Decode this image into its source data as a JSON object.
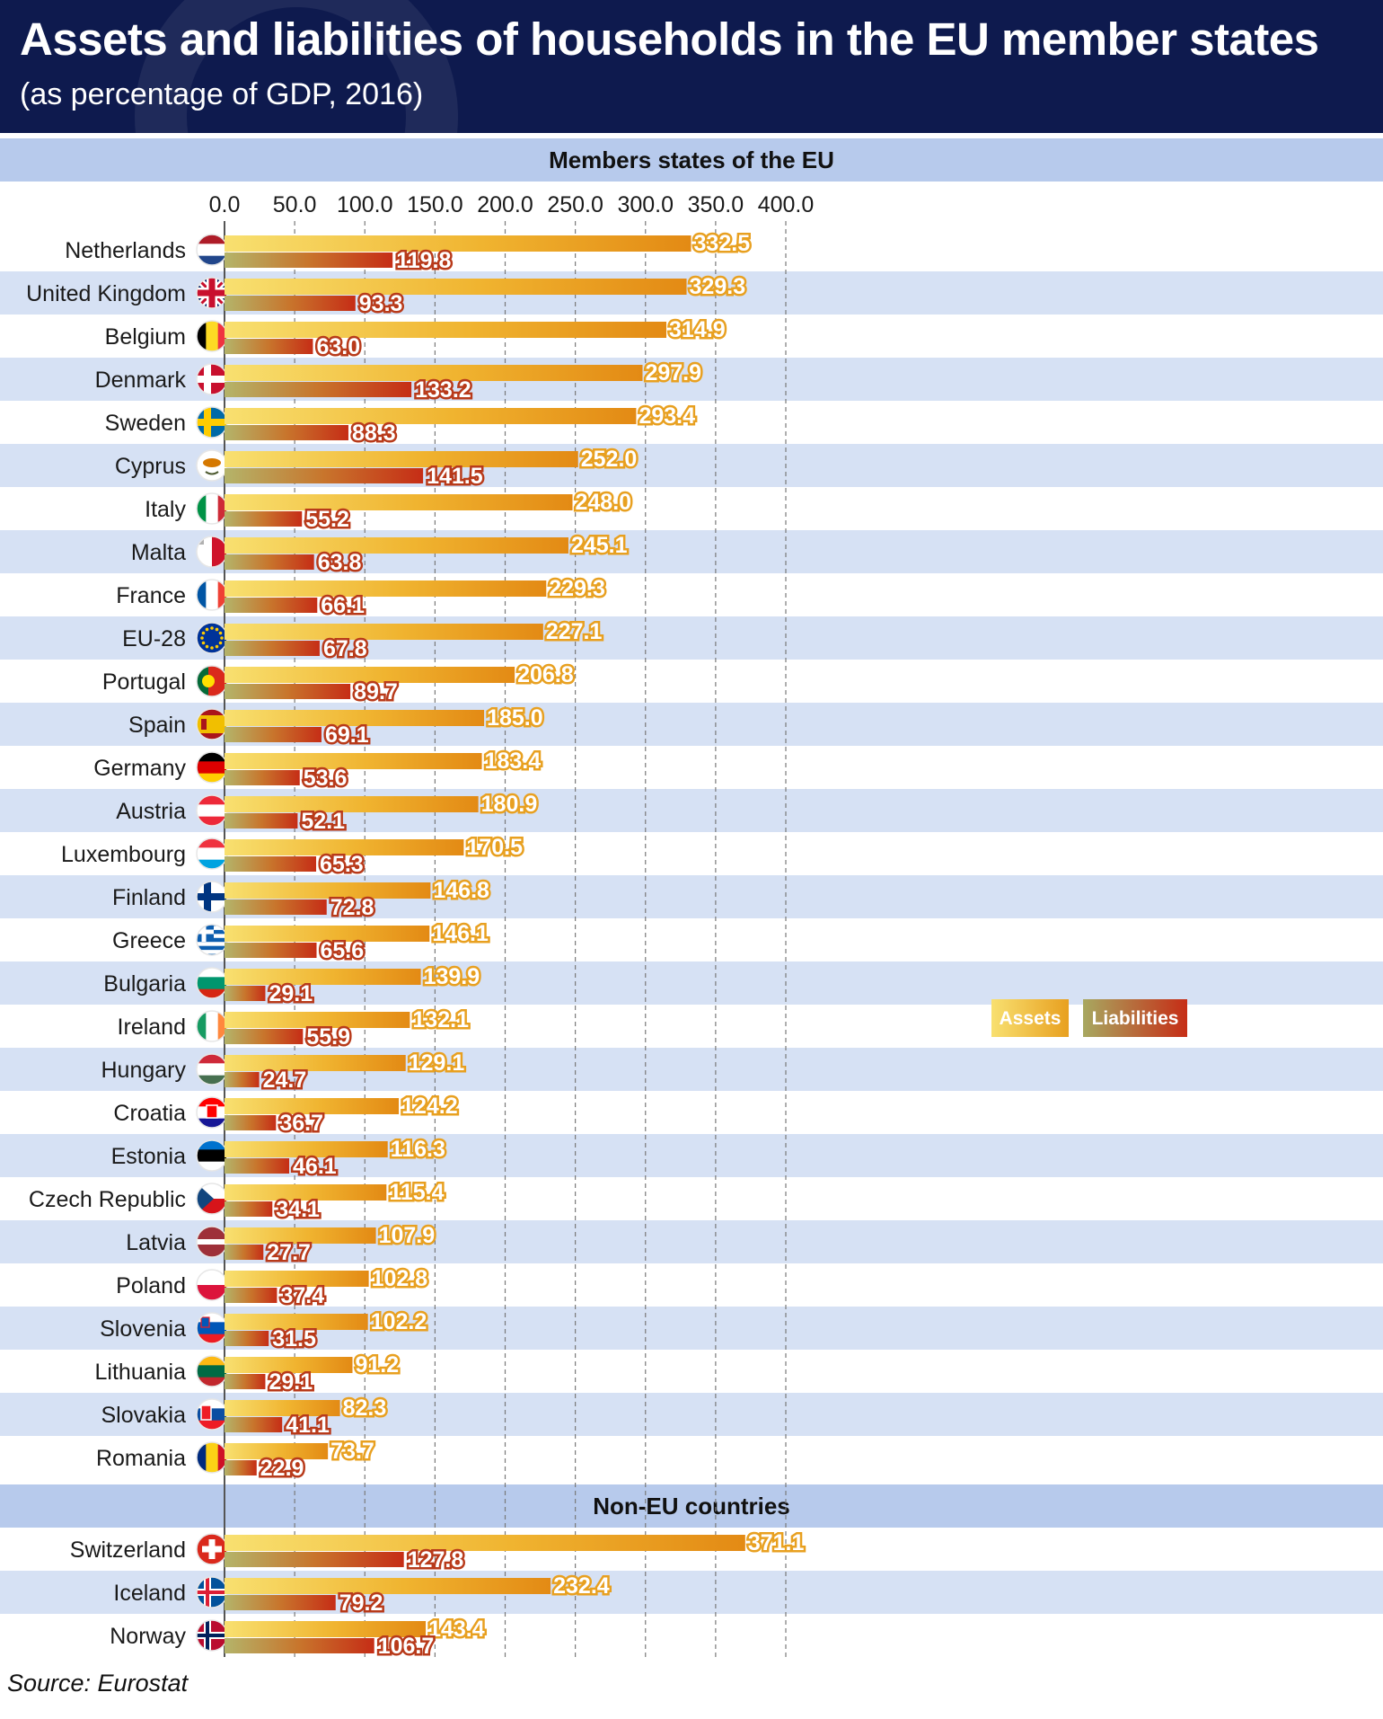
{
  "title": "Assets and liabilities of households in the EU member states",
  "subtitle": "(as percentage of GDP, 2016)",
  "source": "Source: Eurostat",
  "colors": {
    "header": "#0e1a4e",
    "band": "#c8d6ef",
    "assets": "#f0b430",
    "liabilities": "#c0391b"
  },
  "chart_data": {
    "type": "bar",
    "orientation": "horizontal",
    "xlim": [
      0,
      400
    ],
    "ticks": [
      "0.0",
      "50.0",
      "100.0",
      "150.0",
      "200.0",
      "250.0",
      "300.0",
      "350.0",
      "400.0"
    ],
    "legend": [
      "Assets",
      "Liabilities"
    ],
    "legend_position": "right",
    "grid": true,
    "sections": [
      {
        "label": "Members states of the EU",
        "rows": [
          {
            "country": "Netherlands",
            "flag": "netherlands-flag",
            "assets": 332.5,
            "liabilities": 119.8,
            "assets_label": "332.5",
            "liabilities_label": "119.8"
          },
          {
            "country": "United Kingdom",
            "flag": "united-kingdom-flag",
            "assets": 329.3,
            "liabilities": 93.3,
            "assets_label": "329.3",
            "liabilities_label": "93.3"
          },
          {
            "country": "Belgium",
            "flag": "belgium-flag",
            "assets": 314.9,
            "liabilities": 63.0,
            "assets_label": "314.9",
            "liabilities_label": "63.0"
          },
          {
            "country": "Denmark",
            "flag": "denmark-flag",
            "assets": 297.9,
            "liabilities": 133.2,
            "assets_label": "297.9",
            "liabilities_label": "133.2"
          },
          {
            "country": "Sweden",
            "flag": "sweden-flag",
            "assets": 293.4,
            "liabilities": 88.3,
            "assets_label": "293.4",
            "liabilities_label": "88.3"
          },
          {
            "country": "Cyprus",
            "flag": "cyprus-flag",
            "assets": 252.0,
            "liabilities": 141.5,
            "assets_label": "252.0",
            "liabilities_label": "141.5"
          },
          {
            "country": "Italy",
            "flag": "italy-flag",
            "assets": 248.0,
            "liabilities": 55.2,
            "assets_label": "248.0",
            "liabilities_label": "55.2"
          },
          {
            "country": "Malta",
            "flag": "malta-flag",
            "assets": 245.1,
            "liabilities": 63.8,
            "assets_label": "245.1",
            "liabilities_label": "63.8"
          },
          {
            "country": "France",
            "flag": "france-flag",
            "assets": 229.3,
            "liabilities": 66.1,
            "assets_label": "229.3",
            "liabilities_label": "66.1"
          },
          {
            "country": "EU-28",
            "flag": "eu-flag",
            "assets": 227.1,
            "liabilities": 67.8,
            "assets_label": "227.1",
            "liabilities_label": "67.8"
          },
          {
            "country": "Portugal",
            "flag": "portugal-flag",
            "assets": 206.8,
            "liabilities": 89.7,
            "assets_label": "206.8",
            "liabilities_label": "89.7"
          },
          {
            "country": "Spain",
            "flag": "spain-flag",
            "assets": 185.0,
            "liabilities": 69.1,
            "assets_label": "185.0",
            "liabilities_label": "69.1"
          },
          {
            "country": "Germany",
            "flag": "germany-flag",
            "assets": 183.4,
            "liabilities": 53.6,
            "assets_label": "183.4",
            "liabilities_label": "53.6"
          },
          {
            "country": "Austria",
            "flag": "austria-flag",
            "assets": 180.9,
            "liabilities": 52.1,
            "assets_label": "180.9",
            "liabilities_label": "52.1"
          },
          {
            "country": "Luxembourg",
            "flag": "luxembourg-flag",
            "assets": 170.5,
            "liabilities": 65.3,
            "assets_label": "170.5",
            "liabilities_label": "65.3"
          },
          {
            "country": "Finland",
            "flag": "finland-flag",
            "assets": 146.8,
            "liabilities": 72.8,
            "assets_label": "146.8",
            "liabilities_label": "72.8"
          },
          {
            "country": "Greece",
            "flag": "greece-flag",
            "assets": 146.1,
            "liabilities": 65.6,
            "assets_label": "146.1",
            "liabilities_label": "65.6"
          },
          {
            "country": "Bulgaria",
            "flag": "bulgaria-flag",
            "assets": 139.9,
            "liabilities": 29.1,
            "assets_label": "139.9",
            "liabilities_label": "29.1"
          },
          {
            "country": "Ireland",
            "flag": "ireland-flag",
            "assets": 132.1,
            "liabilities": 55.9,
            "assets_label": "132.1",
            "liabilities_label": "55.9"
          },
          {
            "country": "Hungary",
            "flag": "hungary-flag",
            "assets": 129.1,
            "liabilities": 24.7,
            "assets_label": "129.1",
            "liabilities_label": "24.7"
          },
          {
            "country": "Croatia",
            "flag": "croatia-flag",
            "assets": 124.2,
            "liabilities": 36.7,
            "assets_label": "124.2",
            "liabilities_label": "36.7"
          },
          {
            "country": "Estonia",
            "flag": "estonia-flag",
            "assets": 116.3,
            "liabilities": 46.1,
            "assets_label": "116.3",
            "liabilities_label": "46.1"
          },
          {
            "country": "Czech Republic",
            "flag": "czech-republic-flag",
            "assets": 115.4,
            "liabilities": 34.1,
            "assets_label": "115.4",
            "liabilities_label": "34.1"
          },
          {
            "country": "Latvia",
            "flag": "latvia-flag",
            "assets": 107.9,
            "liabilities": 27.7,
            "assets_label": "107.9",
            "liabilities_label": "27.7"
          },
          {
            "country": "Poland",
            "flag": "poland-flag",
            "assets": 102.8,
            "liabilities": 37.4,
            "assets_label": "102.8",
            "liabilities_label": "37.4"
          },
          {
            "country": "Slovenia",
            "flag": "slovenia-flag",
            "assets": 102.2,
            "liabilities": 31.5,
            "assets_label": "102.2",
            "liabilities_label": "31.5"
          },
          {
            "country": "Lithuania",
            "flag": "lithuania-flag",
            "assets": 91.2,
            "liabilities": 29.1,
            "assets_label": "91.2",
            "liabilities_label": "29.1"
          },
          {
            "country": "Slovakia",
            "flag": "slovakia-flag",
            "assets": 82.3,
            "liabilities": 41.1,
            "assets_label": "82.3",
            "liabilities_label": "41.1"
          },
          {
            "country": "Romania",
            "flag": "romania-flag",
            "assets": 73.7,
            "liabilities": 22.9,
            "assets_label": "73.7",
            "liabilities_label": "22.9"
          }
        ]
      },
      {
        "label": "Non-EU countries",
        "rows": [
          {
            "country": "Switzerland",
            "flag": "switzerland-flag",
            "assets": 371.1,
            "liabilities": 127.8,
            "assets_label": "371.1",
            "liabilities_label": "127.8"
          },
          {
            "country": "Iceland",
            "flag": "iceland-flag",
            "assets": 232.4,
            "liabilities": 79.2,
            "assets_label": "232.4",
            "liabilities_label": "79.2"
          },
          {
            "country": "Norway",
            "flag": "norway-flag",
            "assets": 143.4,
            "liabilities": 106.7,
            "assets_label": "143.4",
            "liabilities_label": "106.7"
          }
        ]
      }
    ]
  }
}
